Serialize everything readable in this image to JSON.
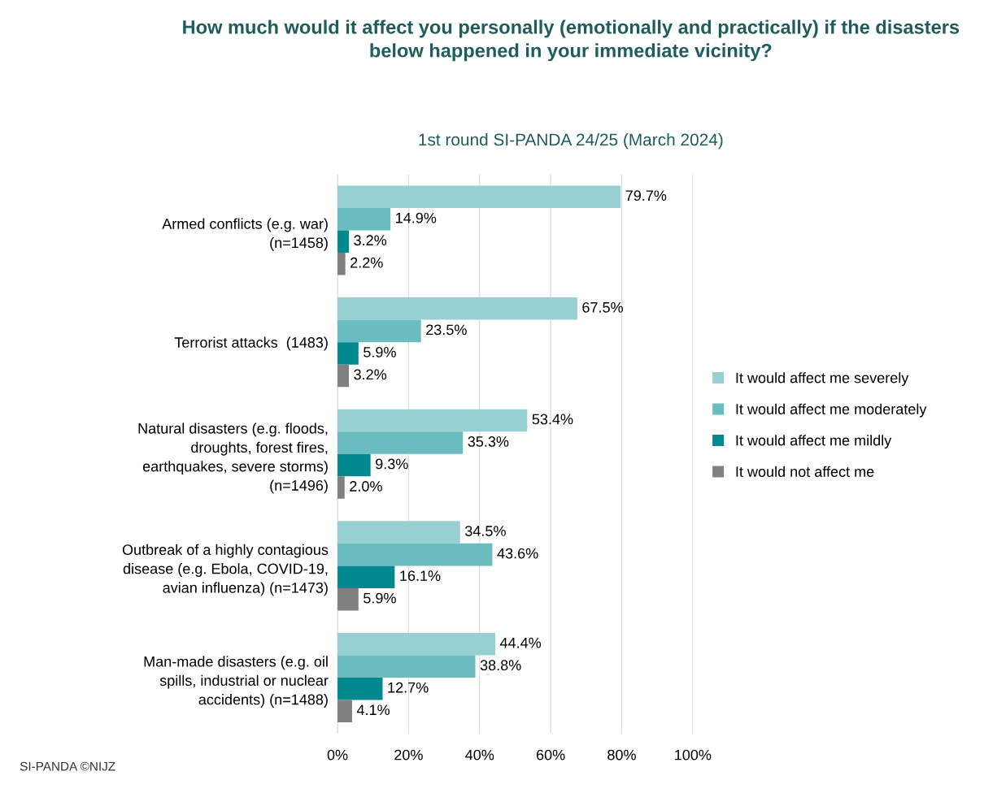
{
  "chart_data": {
    "type": "bar",
    "orientation": "horizontal",
    "title": "How much would it affect you personally (emotionally and practically) if the disasters below happened in your immediate vicinity?",
    "subtitle": "1st round SI-PANDA 24/25 (March 2024)",
    "categories": [
      "Armed conflicts (e.g. war)\n(n=1458)",
      "Terrorist attacks  (1483)",
      "Natural disasters (e.g. floods,\ndroughts, forest fires,\nearthquakes, severe storms)\n(n=1496)",
      "Outbreak of a highly contagious\ndisease (e.g. Ebola, COVID-19,\navian influenza) (n=1473)",
      "Man-made disasters (e.g. oil\nspills, industrial or nuclear\naccidents) (n=1488)"
    ],
    "series": [
      {
        "name": "It would affect me severely",
        "color": "#96d0d3",
        "values": [
          79.7,
          67.5,
          53.4,
          34.5,
          44.4
        ],
        "value_labels": [
          "79.7%",
          "67.5%",
          "53.4%",
          "34.5%",
          "44.4%"
        ]
      },
      {
        "name": "It would affect me moderately",
        "color": "#6bbcc0",
        "values": [
          14.9,
          23.5,
          35.3,
          43.6,
          38.8
        ],
        "value_labels": [
          "14.9%",
          "23.5%",
          "35.3%",
          "43.6%",
          "38.8%"
        ]
      },
      {
        "name": "It would affect me mildly",
        "color": "#00898f",
        "values": [
          3.2,
          5.9,
          9.3,
          16.1,
          12.7
        ],
        "value_labels": [
          "3.2%",
          "5.9%",
          "9.3%",
          "16.1%",
          "12.7%"
        ]
      },
      {
        "name": "It would not affect me",
        "color": "#808080",
        "values": [
          2.2,
          3.2,
          2.0,
          5.9,
          4.1
        ],
        "value_labels": [
          "2.2%",
          "3.2%",
          "2.0%",
          "5.9%",
          "4.1%"
        ]
      }
    ],
    "xlim": [
      0,
      100
    ],
    "xticks": [
      {
        "value": 0,
        "label": "0%"
      },
      {
        "value": 20,
        "label": "20%"
      },
      {
        "value": 40,
        "label": "40%"
      },
      {
        "value": 60,
        "label": "60%"
      },
      {
        "value": 80,
        "label": "80%"
      },
      {
        "value": 100,
        "label": "100%"
      }
    ],
    "grid": "x",
    "legend": "right",
    "annotations": [
      "SI-PANDA ©NIJZ"
    ]
  }
}
